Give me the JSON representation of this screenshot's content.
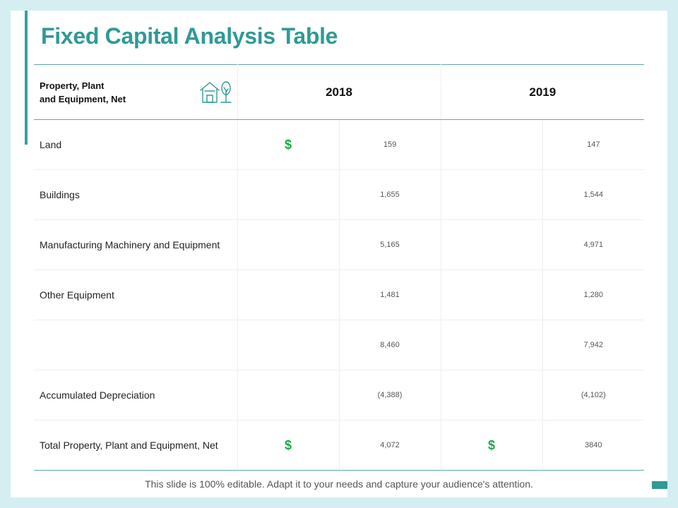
{
  "title": "Fixed Capital Analysis Table",
  "header": {
    "line1": "Property, Plant",
    "line2": "and Equipment, Net",
    "years": [
      "2018",
      "2019"
    ],
    "icon": "house-and-tree-icon"
  },
  "currency_symbol": "$",
  "rows": [
    {
      "label": "Land",
      "v2018": "159",
      "v2019": "147"
    },
    {
      "label": "Buildings",
      "v2018": "1,655",
      "v2019": "1,544"
    },
    {
      "label": "Manufacturing Machinery and Equipment",
      "v2018": "5,165",
      "v2019": "4,971"
    },
    {
      "label": "Other Equipment",
      "v2018": "1,481",
      "v2019": "1,280"
    },
    {
      "label": "",
      "v2018": "8,460",
      "v2019": "7,942"
    },
    {
      "label": "Accumulated Depreciation",
      "v2018": "(4,388)",
      "v2019": "(4,102)"
    },
    {
      "label": "Total Property, Plant and Equipment, Net",
      "v2018": "4,072",
      "v2019": "3840"
    }
  ],
  "footer": "This slide is 100% editable. Adapt it to your needs and capture your audience's attention.",
  "colors": {
    "accent": "#2f9a96",
    "dollar": "#1aa84a",
    "background": "#d4eef2"
  }
}
